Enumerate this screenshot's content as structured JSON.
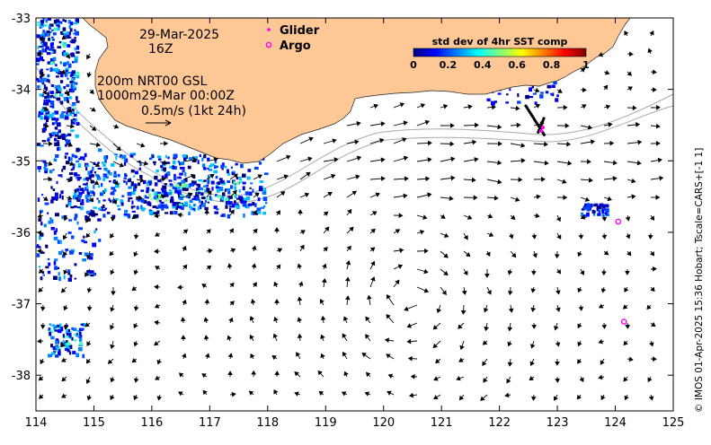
{
  "map": {
    "date_line1": "29-Mar-2025",
    "date_line2": "16Z",
    "depth_line1": "200m  NRT00 GSL",
    "depth_line2": "1000m29-Mar 00:00Z",
    "scale_label": "0.5m/s (1kt 24h)",
    "legend": {
      "glider_label": "Glider",
      "argo_label": "Argo",
      "glider_color": "#ff00ff",
      "argo_color": "#ff00ff"
    },
    "colorbar": {
      "title": "std dev of 4hr SST comp",
      "ticks": [
        "0",
        "0.2",
        "0.4",
        "0.6",
        "0.8",
        "1"
      ],
      "colormap": [
        "#00007f",
        "#0000ff",
        "#007fff",
        "#00ffff",
        "#7fff7f",
        "#ffff00",
        "#ff7f00",
        "#ff0000",
        "#7f0000"
      ]
    },
    "x_ticks": [
      "114",
      "115",
      "116",
      "117",
      "118",
      "119",
      "120",
      "121",
      "122",
      "123",
      "124",
      "125"
    ],
    "y_ticks": [
      "-33",
      "-34",
      "-35",
      "-36",
      "-37",
      "-38"
    ],
    "lon_range": [
      114,
      125
    ],
    "lat_range": [
      -38.5,
      -33
    ],
    "land_color": "#fdc896",
    "credit": "© IMOS 01-Apr-2025 15:36 Hobart; Tscale=CARS+[-1 1]",
    "argo_floats": [
      {
        "lon": 124.05,
        "lat": -35.85
      },
      {
        "lon": 124.15,
        "lat": -37.25
      }
    ]
  }
}
